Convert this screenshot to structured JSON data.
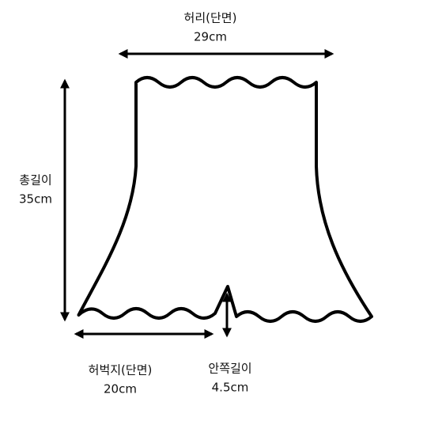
{
  "measurements": [
    {
      "label": "허리(단면)",
      "value": "29cm"
    },
    {
      "label": "총길이",
      "value": "35cm"
    },
    {
      "label": "허벅지(단면)",
      "value": "20cm"
    },
    {
      "label": "안쪽길이",
      "value": "4.5cm"
    }
  ]
}
